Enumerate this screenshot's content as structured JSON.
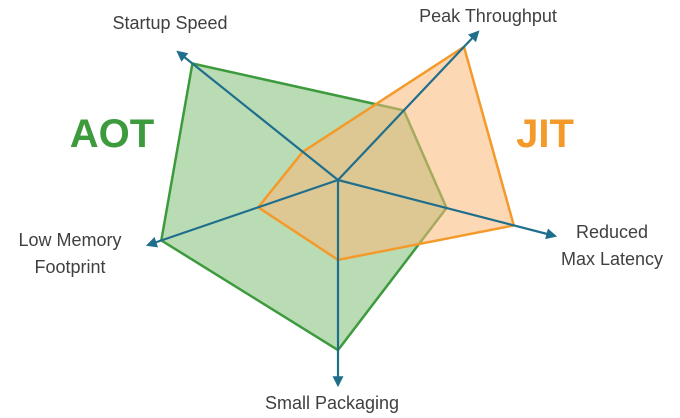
{
  "chart_data": {
    "type": "radar",
    "title": "",
    "axes": [
      "Startup Speed",
      "Peak Throughput",
      "Reduced Max Latency",
      "Small Packaging",
      "Low Memory Footprint"
    ],
    "axis_label_lines": [
      [
        "Startup Speed"
      ],
      [
        "Peak Throughput"
      ],
      [
        "Reduced",
        "Max Latency"
      ],
      [
        "Small Packaging"
      ],
      [
        "Low Memory",
        "Footprint"
      ]
    ],
    "range": [
      0,
      1
    ],
    "grid": false,
    "series": [
      {
        "name": "AOT",
        "values": [
          0.91,
          0.47,
          0.5,
          0.83,
          0.93
        ],
        "color": "#3d9a3d",
        "fill": "#7fbf78"
      },
      {
        "name": "JIT",
        "values": [
          0.22,
          0.9,
          0.81,
          0.39,
          0.42
        ],
        "color": "#f39a2b",
        "fill": "#fbb878"
      }
    ],
    "axis_color": "#1f6e8c"
  }
}
